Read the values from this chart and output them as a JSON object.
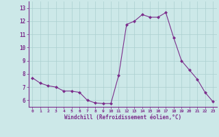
{
  "x": [
    0,
    1,
    2,
    3,
    4,
    5,
    6,
    7,
    8,
    9,
    10,
    11,
    12,
    13,
    14,
    15,
    16,
    17,
    18,
    19,
    20,
    21,
    22,
    23
  ],
  "y": [
    7.7,
    7.3,
    7.1,
    7.0,
    6.7,
    6.7,
    6.6,
    6.0,
    5.8,
    5.75,
    5.75,
    7.9,
    11.75,
    12.0,
    12.5,
    12.3,
    12.3,
    12.65,
    10.75,
    9.0,
    8.3,
    7.6,
    6.6,
    5.9
  ],
  "line_color": "#7b2d8b",
  "marker": "D",
  "marker_size": 2.0,
  "bg_color": "#cce8e8",
  "grid_color": "#aacfcf",
  "xlabel": "Windchill (Refroidissement éolien,°C)",
  "xlabel_color": "#7b2d8b",
  "tick_color": "#7b2d8b",
  "ylabel_ticks": [
    6,
    7,
    8,
    9,
    10,
    11,
    12,
    13
  ],
  "ylim": [
    5.5,
    13.5
  ],
  "xlim": [
    -0.5,
    23.5
  ]
}
